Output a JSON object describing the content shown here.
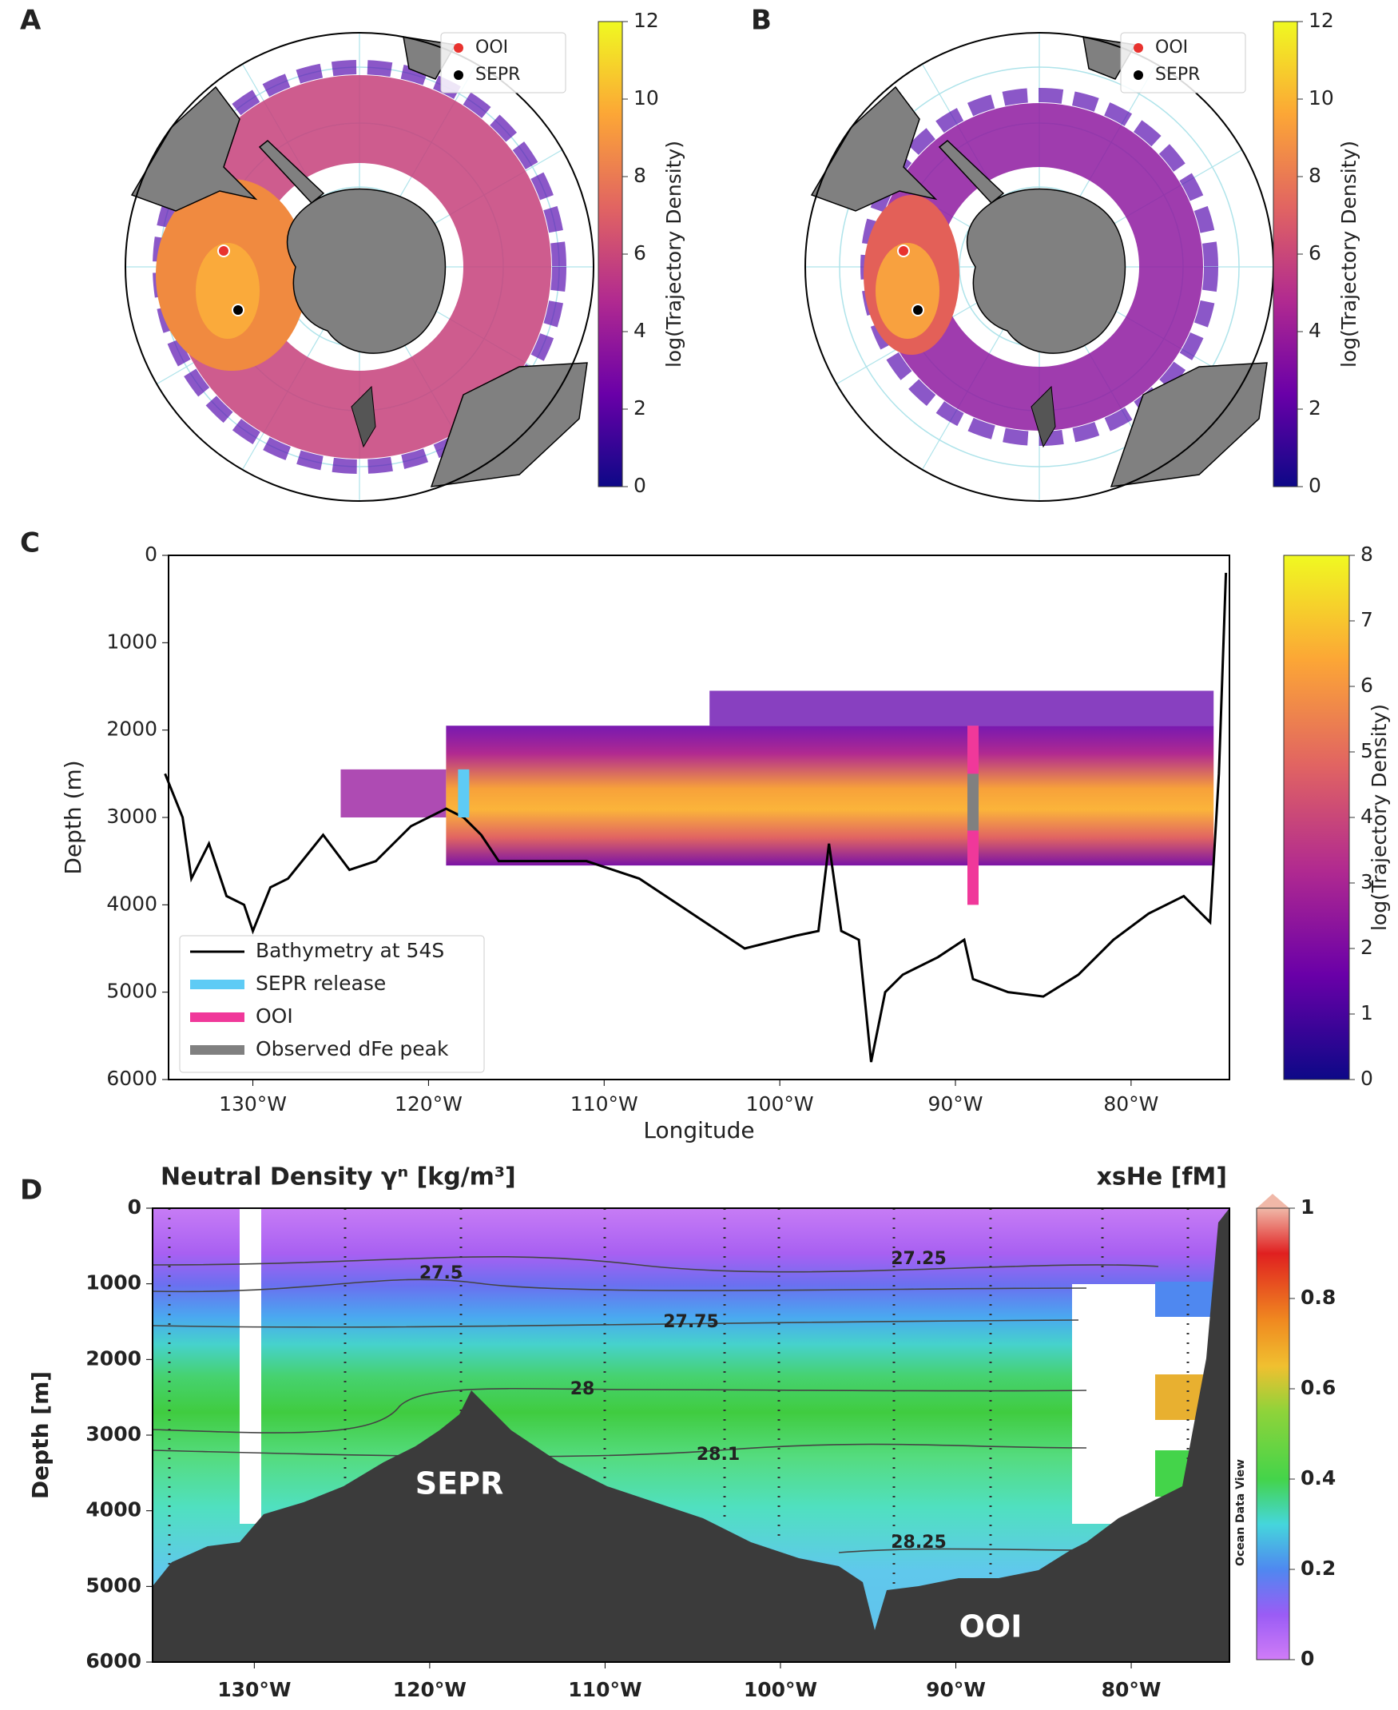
{
  "chart_data": [
    {
      "type": "polar_map",
      "panel": "A",
      "legend": [
        {
          "name": "OOI",
          "color": "#e8322e"
        },
        {
          "name": "SEPR",
          "color": "#000000"
        }
      ],
      "colorbar": {
        "label": "log(Trajectory Density)",
        "lim": [
          0,
          12
        ],
        "ticks": [
          0,
          2,
          4,
          6,
          8,
          10,
          12
        ]
      }
    },
    {
      "type": "polar_map",
      "panel": "B",
      "legend": [
        {
          "name": "OOI",
          "color": "#e8322e"
        },
        {
          "name": "SEPR",
          "color": "#000000"
        }
      ],
      "colorbar": {
        "label": "log(Trajectory Density)",
        "lim": [
          0,
          12
        ],
        "ticks": [
          0,
          2,
          4,
          6,
          8,
          10,
          12
        ]
      }
    },
    {
      "type": "line",
      "panel": "C",
      "xlabel": "Longitude",
      "ylabel": "Depth (m)",
      "xlim": [
        -134.8,
        -74.4
      ],
      "ylim": [
        0,
        6000
      ],
      "y_inverted": true,
      "xticks": [
        {
          "value": -130,
          "label": "130°W"
        },
        {
          "value": -120,
          "label": "120°W"
        },
        {
          "value": -110,
          "label": "110°W"
        },
        {
          "value": -100,
          "label": "100°W"
        },
        {
          "value": -90,
          "label": "90°W"
        },
        {
          "value": -80,
          "label": "80°W"
        }
      ],
      "yticks": [
        0,
        1000,
        2000,
        3000,
        4000,
        5000,
        6000
      ],
      "series": [
        {
          "name": "Bathymetry at 54S",
          "color": "#000000",
          "x": [
            -135,
            -134,
            -133.5,
            -132.5,
            -131.5,
            -130.5,
            -130,
            -129,
            -128,
            -126,
            -124.5,
            -123,
            -121,
            -119,
            -118,
            -117,
            -116,
            -113,
            -111,
            -108,
            -105,
            -102,
            -99,
            -97.8,
            -97.2,
            -96.5,
            -95.5,
            -94.8,
            -94,
            -93,
            -91,
            -89.5,
            -89,
            -87,
            -85,
            -83,
            -81,
            -79,
            -77,
            -76,
            -75.5,
            -75,
            -74.6
          ],
          "values": [
            2500,
            3000,
            3700,
            3300,
            3900,
            4000,
            4300,
            3800,
            3700,
            3200,
            3600,
            3500,
            3100,
            2900,
            3000,
            3200,
            3500,
            3500,
            3500,
            3700,
            4100,
            4500,
            4350,
            4300,
            3300,
            4300,
            4400,
            5800,
            5000,
            4800,
            4600,
            4400,
            4850,
            5000,
            5050,
            4800,
            4400,
            4100,
            3900,
            4100,
            4200,
            2500,
            200
          ]
        },
        {
          "name": "SEPR release",
          "color": "#5ecbf5",
          "x": [
            -118,
            -118
          ],
          "values": [
            2450,
            3000
          ]
        },
        {
          "name": "OOI",
          "color": "#f0389a",
          "x": [
            -89,
            -89
          ],
          "values": [
            1950,
            4000
          ]
        },
        {
          "name": "Observed dFe peak",
          "color": "#808080",
          "x": [
            -89,
            -89
          ],
          "values": [
            2500,
            3150
          ]
        }
      ],
      "colorbar": {
        "label": "log(Trajectory Density)",
        "lim": [
          0,
          8
        ],
        "ticks": [
          0,
          1,
          2,
          3,
          4,
          5,
          6,
          7,
          8
        ]
      }
    },
    {
      "type": "section",
      "panel": "D",
      "title_left": "Neutral Density γⁿ [kg/m³]",
      "title_right": "xsHe [fM]",
      "ylabel": "Depth [m]",
      "xlim": [
        -135.8,
        -74.4
      ],
      "ylim": [
        0,
        6000
      ],
      "y_inverted": true,
      "xticks": [
        {
          "value": -130,
          "label": "130°W"
        },
        {
          "value": -120,
          "label": "120°W"
        },
        {
          "value": -110,
          "label": "110°W"
        },
        {
          "value": -100,
          "label": "100°W"
        },
        {
          "value": -90,
          "label": "90°W"
        },
        {
          "value": -80,
          "label": "80°W"
        }
      ],
      "yticks": [
        0,
        1000,
        2000,
        3000,
        4000,
        5000,
        6000
      ],
      "contours": [
        27.25,
        27.5,
        27.75,
        28,
        28.1,
        28.25
      ],
      "annotations": [
        "SEPR",
        "OOI",
        "Ocean Data View"
      ],
      "colorbar": {
        "lim": [
          0,
          1
        ],
        "ticks": [
          0,
          0.2,
          0.4,
          0.6,
          0.8,
          1
        ]
      }
    }
  ]
}
